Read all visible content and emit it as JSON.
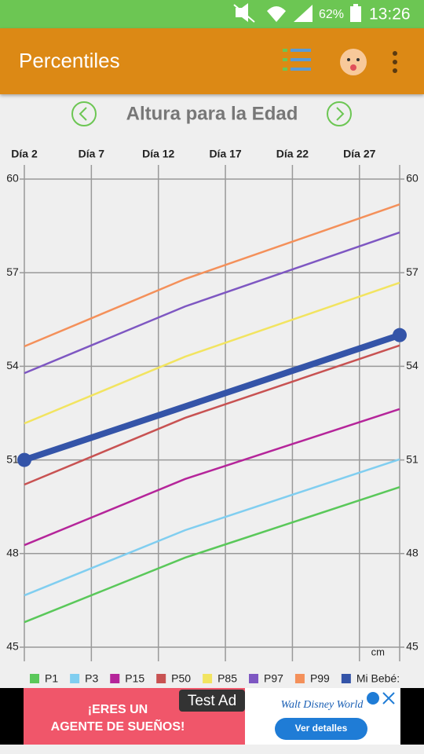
{
  "status_bar": {
    "battery": "62%",
    "time": "13:26"
  },
  "app_bar": {
    "title": "Percentiles"
  },
  "ad": {
    "line1": "¡ERES UN",
    "line2": "AGENTE DE SUEÑOS!",
    "badge": "Test Ad",
    "brand": "Walt Disney World",
    "button": "Ver detalles"
  },
  "chart_data": {
    "type": "line",
    "title": "Altura para la Edad",
    "unit": "cm",
    "xlim": [
      2,
      30
    ],
    "xticks": [
      {
        "value": 2,
        "label": "Día 2"
      },
      {
        "value": 7,
        "label": "Día 7"
      },
      {
        "value": 12,
        "label": "Día 12"
      },
      {
        "value": 17,
        "label": "Día 17"
      },
      {
        "value": 22,
        "label": "Día 22"
      },
      {
        "value": 27,
        "label": "Día 27"
      }
    ],
    "ylim": [
      45,
      60
    ],
    "yticks": [
      45,
      48,
      51,
      54,
      57,
      60
    ],
    "grid": true,
    "legend": "bottom",
    "series": [
      {
        "name": "P1",
        "color": "#5ac85a",
        "x": [
          2,
          14,
          30
        ],
        "values": [
          45.8,
          47.87,
          50.13
        ]
      },
      {
        "name": "P3",
        "color": "#80cef0",
        "x": [
          2,
          14,
          30
        ],
        "values": [
          46.66,
          48.75,
          51.02
        ]
      },
      {
        "name": "P15",
        "color": "#b5259a",
        "x": [
          2,
          14,
          30
        ],
        "values": [
          48.27,
          50.39,
          52.63
        ]
      },
      {
        "name": "P50",
        "color": "#c85252",
        "x": [
          2,
          14,
          30
        ],
        "values": [
          50.21,
          52.35,
          54.67
        ]
      },
      {
        "name": "P85",
        "color": "#f2e460",
        "x": [
          2,
          14,
          30
        ],
        "values": [
          52.17,
          54.31,
          56.68
        ]
      },
      {
        "name": "P97",
        "color": "#7e57c2",
        "x": [
          2,
          14,
          30
        ],
        "values": [
          53.78,
          55.92,
          58.29
        ]
      },
      {
        "name": "P99",
        "color": "#f4905a",
        "x": [
          2,
          14,
          30
        ],
        "values": [
          54.64,
          56.8,
          59.19
        ]
      },
      {
        "name": "Mi Bebé:",
        "color": "#3454a8",
        "x": [
          2,
          30
        ],
        "values": [
          51.0,
          55.0
        ],
        "markers": true
      }
    ]
  }
}
